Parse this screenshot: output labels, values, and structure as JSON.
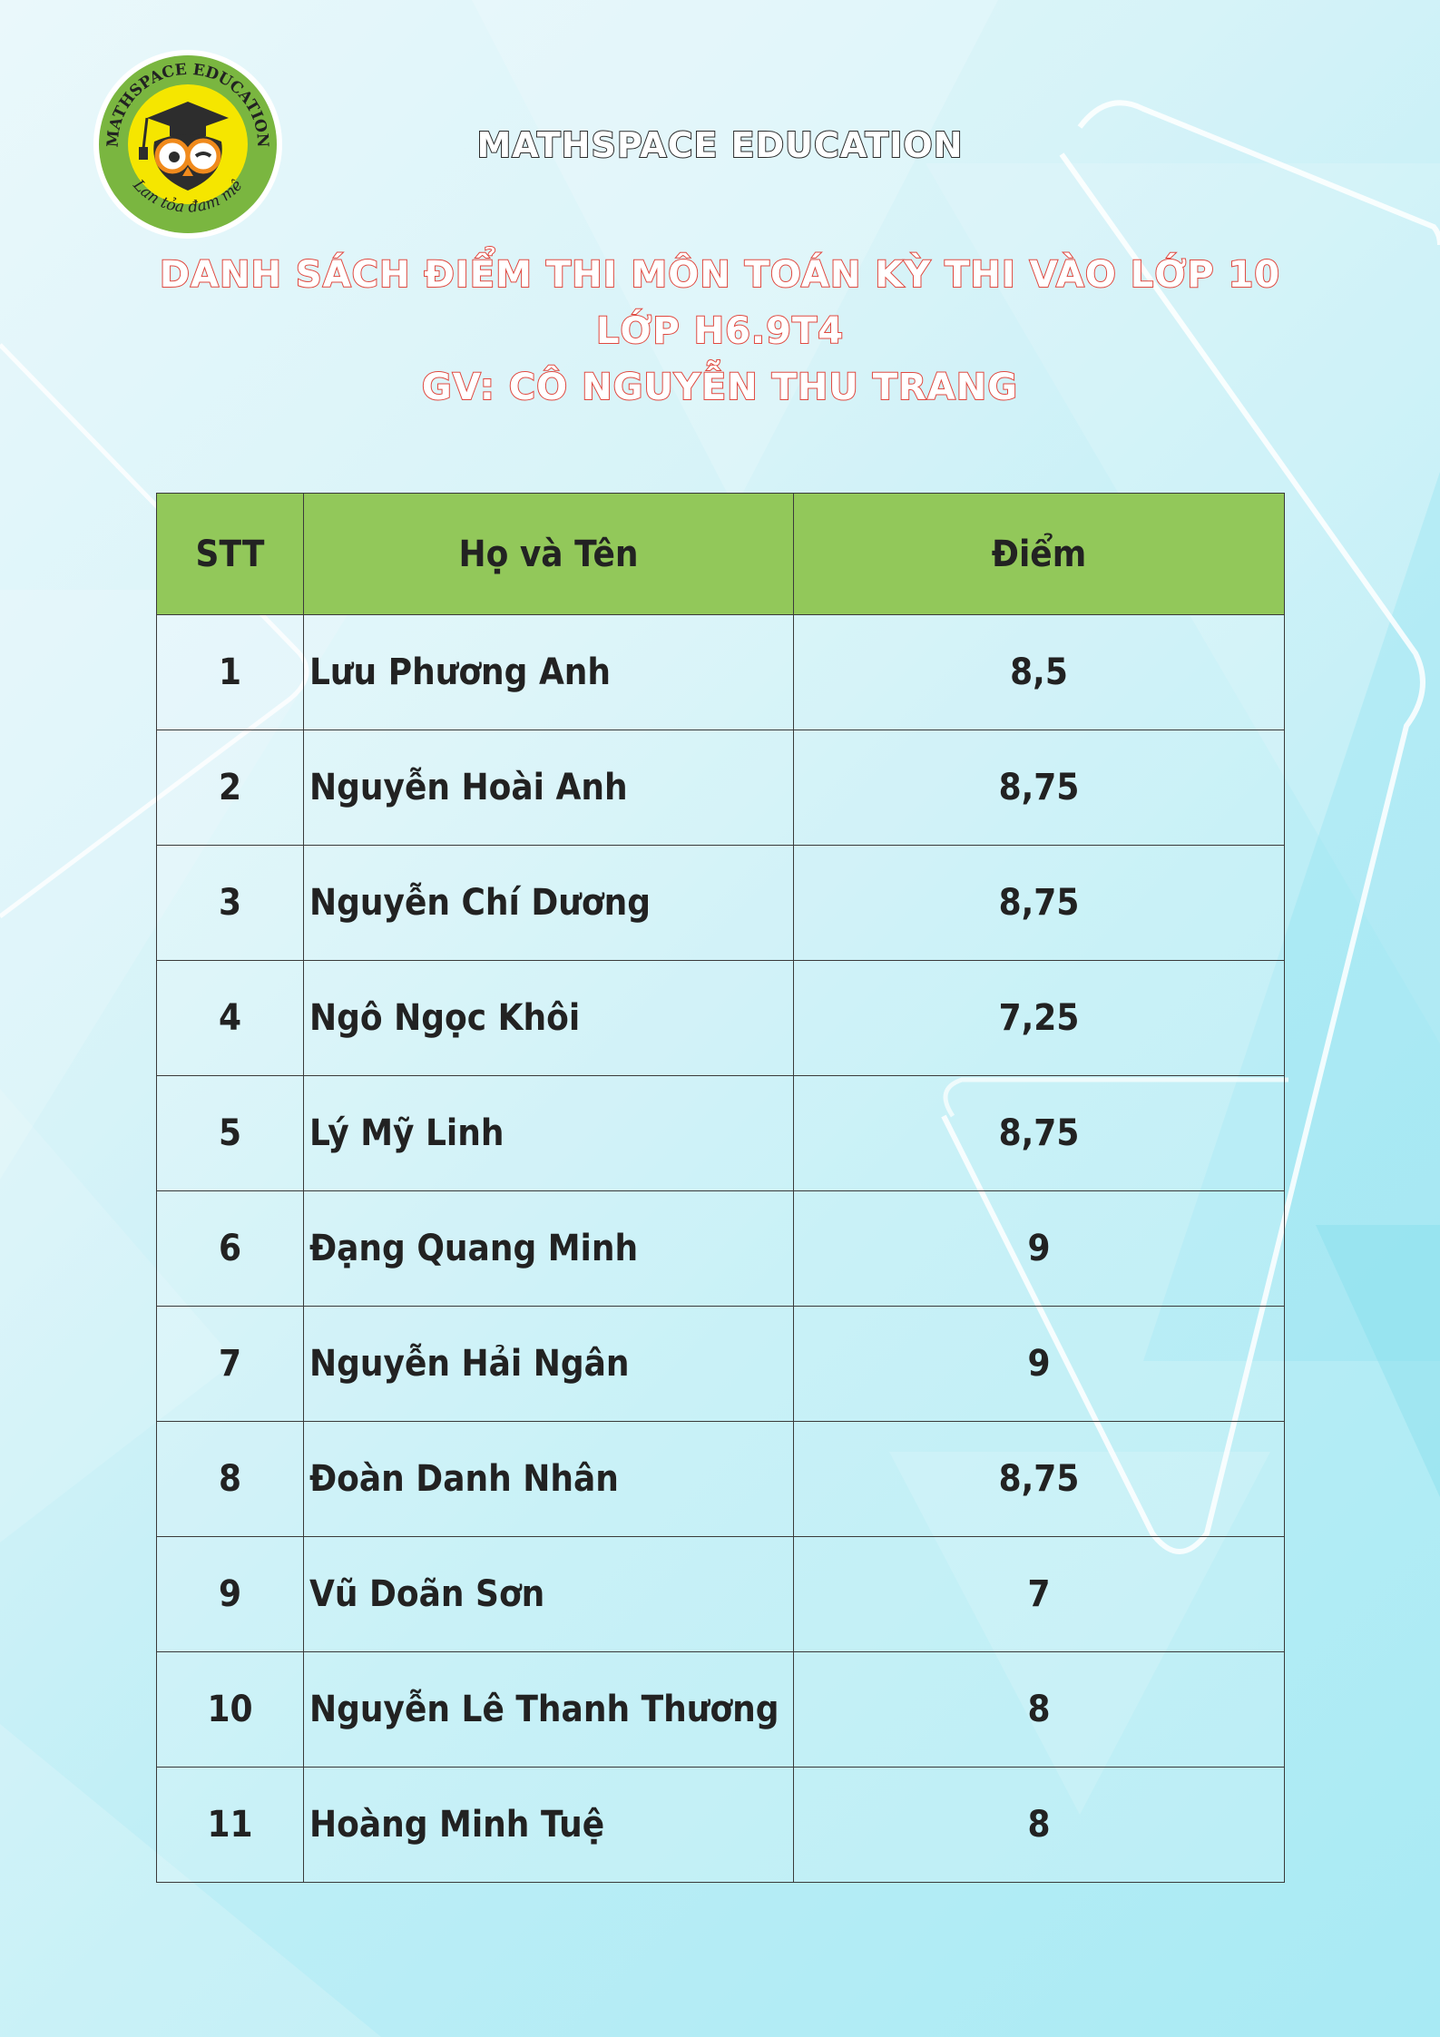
{
  "logo": {
    "arc_text": "MATHSPACE EDUCATION",
    "slogan": "Lan tỏa đam mê",
    "colors": {
      "ring": "#7ab640",
      "inner": "#f5e600",
      "owl": "#2d2d2d"
    }
  },
  "header": {
    "brand": "MATHSPACE EDUCATION",
    "title_line1": "DANH SÁCH ĐIỂM THI MÔN TOÁN KỲ THI VÀO LỚP 10",
    "title_line2": "LỚP H6.9T4",
    "title_line3": "GV: CÔ NGUYỄN THU TRANG"
  },
  "table": {
    "headers": {
      "stt": "STT",
      "name": "Họ và Tên",
      "score": "Điểm"
    },
    "rows": [
      {
        "stt": "1",
        "name": "Lưu Phương Anh",
        "score": "8,5"
      },
      {
        "stt": "2",
        "name": "Nguyễn Hoài Anh",
        "score": "8,75"
      },
      {
        "stt": "3",
        "name": "Nguyễn Chí Dương",
        "score": "8,75"
      },
      {
        "stt": "4",
        "name": "Ngô Ngọc Khôi",
        "score": "7,25"
      },
      {
        "stt": "5",
        "name": "Lý Mỹ Linh",
        "score": "8,75"
      },
      {
        "stt": "6",
        "name": "Đạng Quang Minh",
        "score": "9"
      },
      {
        "stt": "7",
        "name": "Nguyễn Hải Ngân",
        "score": "9"
      },
      {
        "stt": "8",
        "name": "Đoàn Danh Nhân",
        "score": "8,75"
      },
      {
        "stt": "9",
        "name": "Vũ Doãn Sơn",
        "score": "7"
      },
      {
        "stt": "10",
        "name": "Nguyễn Lê Thanh Thương",
        "score": "8"
      },
      {
        "stt": "11",
        "name": "Hoàng Minh Tuệ",
        "score": "8"
      }
    ]
  },
  "colors": {
    "header_fill": "#92c85a",
    "title_outline": "#e0483f",
    "grid": "#3a3a3a"
  }
}
